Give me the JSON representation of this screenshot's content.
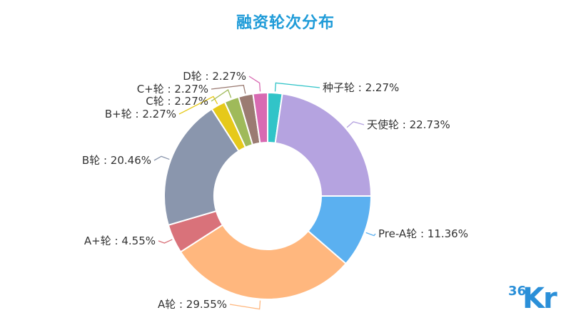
{
  "chart_data": {
    "type": "pie",
    "title": "融资轮次分布",
    "series": [
      {
        "name": "种子轮",
        "value": 2.27,
        "color": "#31c4c8"
      },
      {
        "name": "天使轮",
        "value": 22.73,
        "color": "#b5a3e0"
      },
      {
        "name": "Pre-A轮",
        "value": 11.36,
        "color": "#5bb0f0"
      },
      {
        "name": "A轮",
        "value": 29.55,
        "color": "#ffb77e"
      },
      {
        "name": "A+轮",
        "value": 4.55,
        "color": "#d9727a"
      },
      {
        "name": "B轮",
        "value": 20.46,
        "color": "#8a96ad"
      },
      {
        "name": "B+轮",
        "value": 2.27,
        "color": "#e6c91a"
      },
      {
        "name": "C轮",
        "value": 2.27,
        "color": "#9fba5a"
      },
      {
        "name": "C+轮",
        "value": 2.27,
        "color": "#9b7b72"
      },
      {
        "name": "D轮",
        "value": 2.27,
        "color": "#d86ab2"
      }
    ],
    "labels": [
      "种子轮 : 2.27%",
      "天使轮 : 22.73%",
      "Pre-A轮 : 11.36%",
      "A轮 : 29.55%",
      "A+轮 : 4.55%",
      "B轮 : 20.46%",
      "B+轮 : 2.27%",
      "C轮 : 2.27%",
      "C+轮 : 2.27%",
      "D轮 : 2.27%"
    ]
  },
  "logo": {
    "num": "36",
    "letters": "Kr"
  }
}
